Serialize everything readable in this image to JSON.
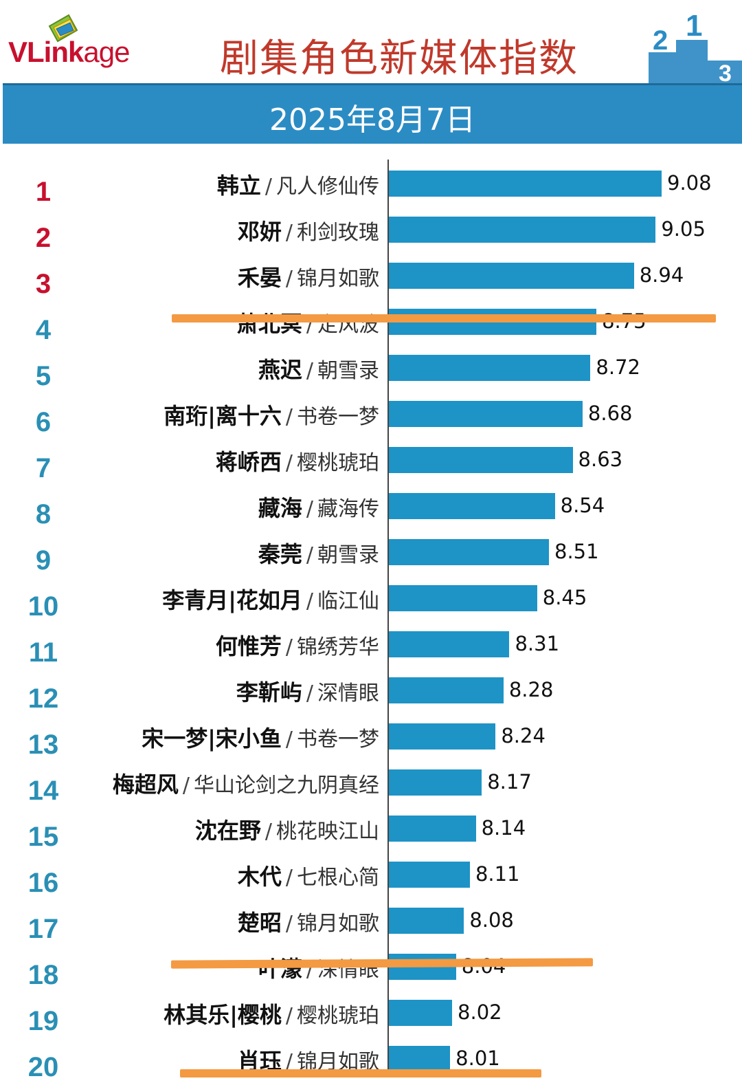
{
  "header": {
    "logo": {
      "v": "V",
      "link": "Link",
      "age": "age"
    },
    "title": "剧集角色新媒体指数",
    "date": "2025年8月7日",
    "podium": {
      "first": "1",
      "second": "2",
      "third": "3"
    }
  },
  "colors": {
    "bar": "#1e93c6",
    "band": "#2b8cc4",
    "title": "#c0392b",
    "rank_top": "#c8102e",
    "rank_rest": "#2a8fb5",
    "cutline": "#f39a43"
  },
  "chart_data": {
    "type": "bar",
    "orientation": "horizontal",
    "xlim": [
      7.7,
      9.26
    ],
    "grid": false,
    "rows": [
      {
        "rank": "1",
        "character": "韩立",
        "show": "凡人修仙传",
        "value": 9.08,
        "label": "9.08"
      },
      {
        "rank": "2",
        "character": "邓妍",
        "show": "利剑玫瑰",
        "value": 9.05,
        "label": "9.05"
      },
      {
        "rank": "3",
        "character": "禾晏",
        "show": "锦月如歌",
        "value": 8.94,
        "label": "8.94"
      },
      {
        "rank": "4",
        "character": "萧北冥",
        "show": "定风波",
        "value": 8.75,
        "label": "8.75"
      },
      {
        "rank": "5",
        "character": "燕迟",
        "show": "朝雪录",
        "value": 8.72,
        "label": "8.72"
      },
      {
        "rank": "6",
        "character": "南珩|离十六",
        "show": "书卷一梦",
        "value": 8.68,
        "label": "8.68"
      },
      {
        "rank": "7",
        "character": "蒋峤西",
        "show": "樱桃琥珀",
        "value": 8.63,
        "label": "8.63"
      },
      {
        "rank": "8",
        "character": "藏海",
        "show": "藏海传",
        "value": 8.54,
        "label": "8.54"
      },
      {
        "rank": "9",
        "character": "秦莞",
        "show": "朝雪录",
        "value": 8.51,
        "label": "8.51"
      },
      {
        "rank": "10",
        "character": "李青月|花如月",
        "show": "临江仙",
        "value": 8.45,
        "label": "8.45"
      },
      {
        "rank": "11",
        "character": "何惟芳",
        "show": "锦绣芳华",
        "value": 8.31,
        "label": "8.31"
      },
      {
        "rank": "12",
        "character": "李靳屿",
        "show": "深情眼",
        "value": 8.28,
        "label": "8.28"
      },
      {
        "rank": "13",
        "character": "宋一梦|宋小鱼",
        "show": "书卷一梦",
        "value": 8.24,
        "label": "8.24"
      },
      {
        "rank": "14",
        "character": "梅超风",
        "show": "华山论剑之九阴真经",
        "value": 8.17,
        "label": "8.17"
      },
      {
        "rank": "15",
        "character": "沈在野",
        "show": "桃花映江山",
        "value": 8.14,
        "label": "8.14"
      },
      {
        "rank": "16",
        "character": "木代",
        "show": "七根心简",
        "value": 8.11,
        "label": "8.11"
      },
      {
        "rank": "17",
        "character": "楚昭",
        "show": "锦月如歌",
        "value": 8.08,
        "label": "8.08"
      },
      {
        "rank": "18",
        "character": "叶濛",
        "show": "深情眼",
        "value": 8.04,
        "label": "8.04"
      },
      {
        "rank": "19",
        "character": "林其乐|樱桃",
        "show": "樱桃琥珀",
        "value": 8.02,
        "label": "8.02"
      },
      {
        "rank": "20",
        "character": "肖珏",
        "show": "锦月如歌",
        "value": 8.01,
        "label": "8.01"
      }
    ],
    "separator": "/",
    "highlight_after_ranks": [
      "3",
      "17",
      "20"
    ]
  }
}
